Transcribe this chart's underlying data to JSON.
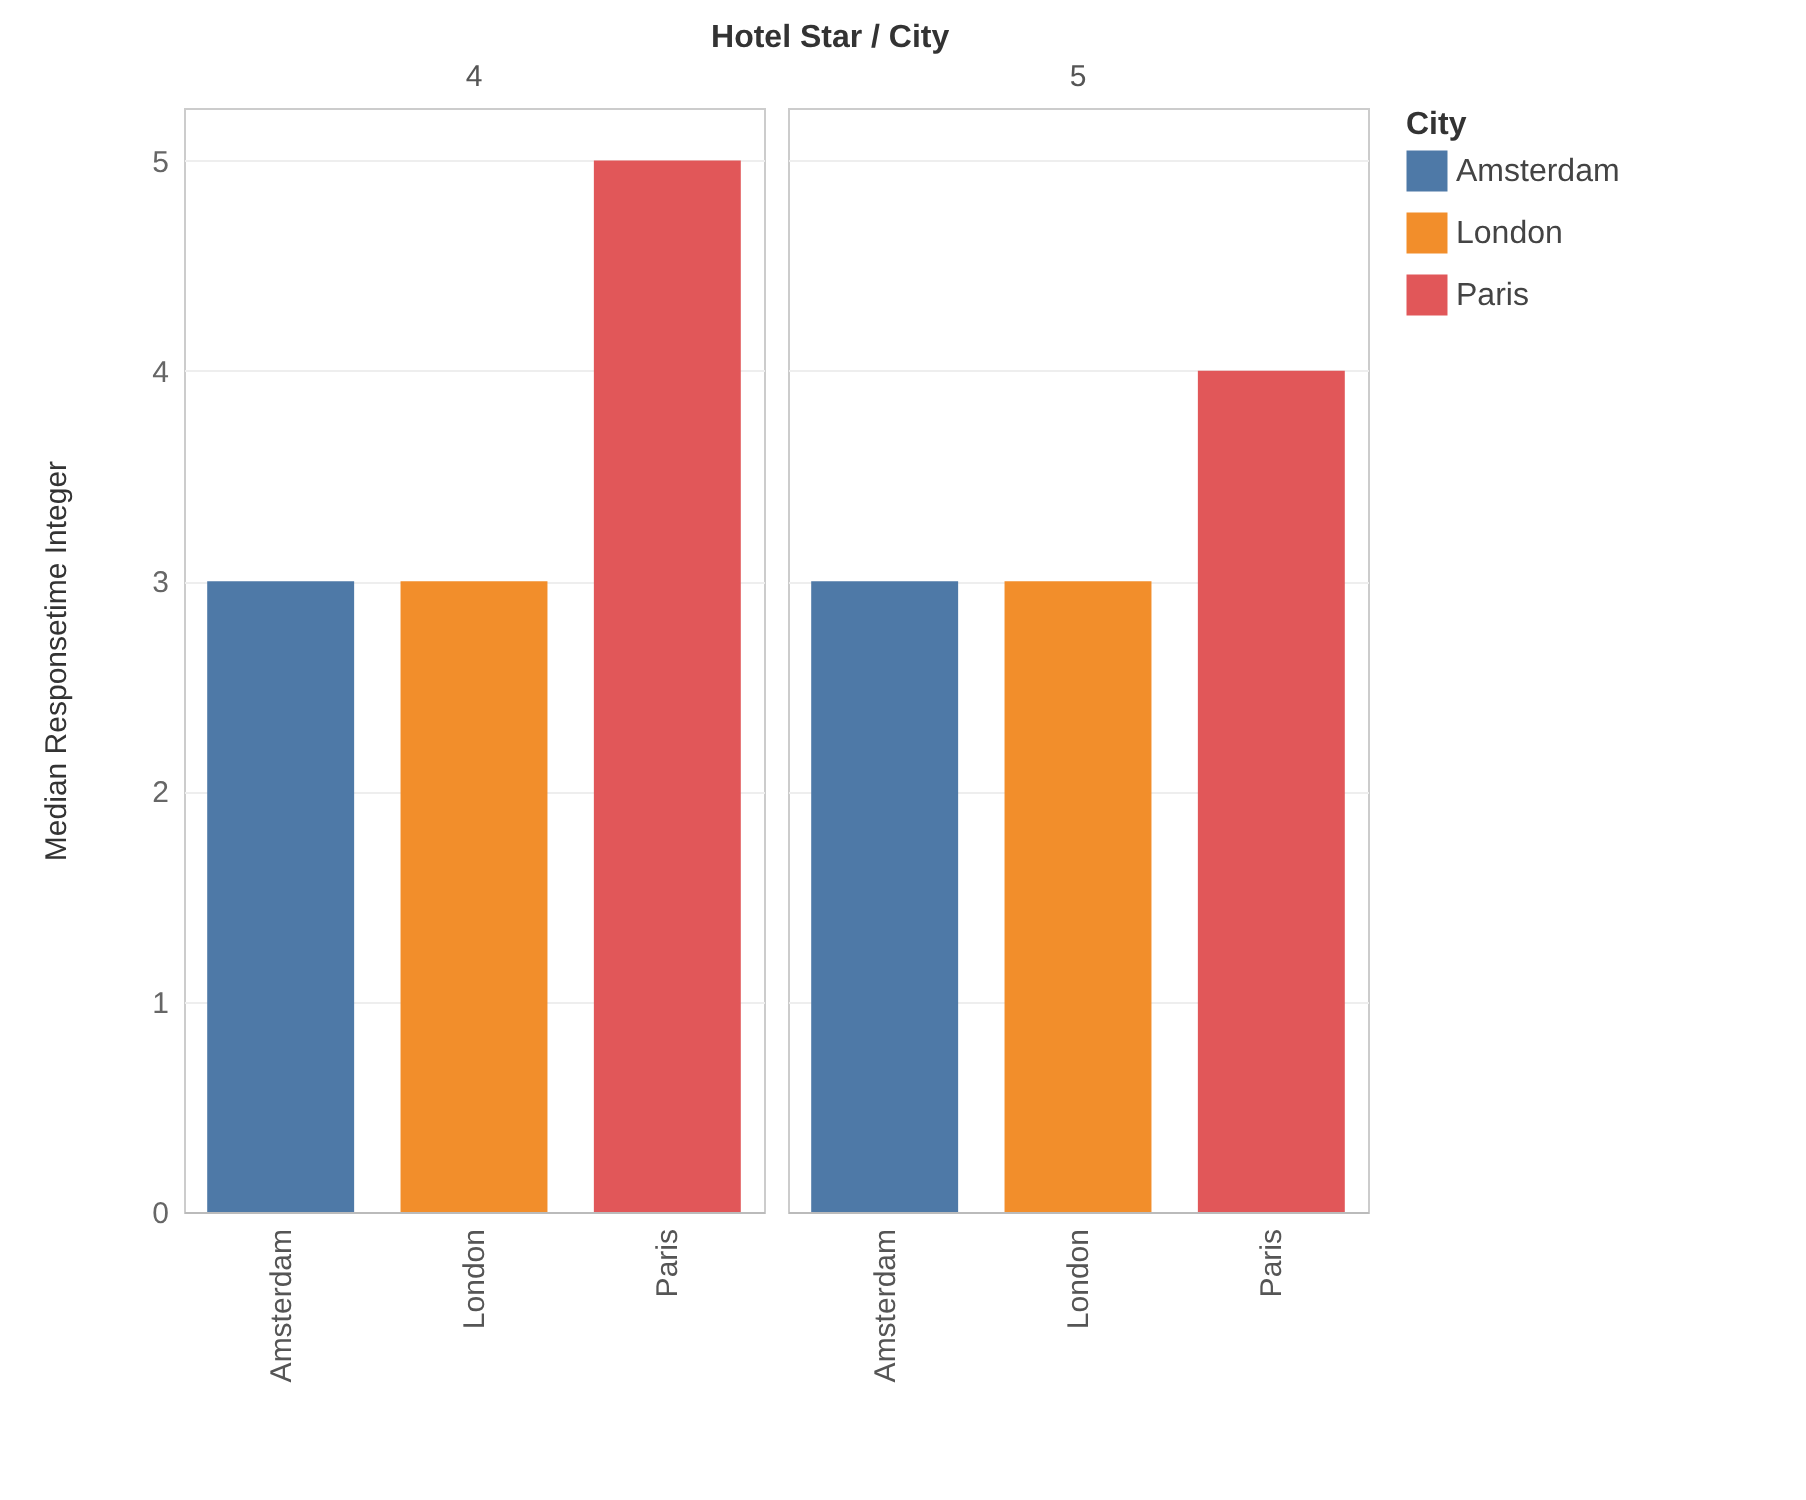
{
  "chart_data": [
    {
      "type": "bar",
      "title": "4",
      "annotations": [
        "Hotel Star / City"
      ],
      "ylabel": "Median Responsetime Integer",
      "categories": [
        "Amsterdam",
        "London",
        "Paris"
      ],
      "series": [
        {
          "name": "Amsterdam",
          "color": "#4e79a7",
          "values": [
            3,
            null,
            null
          ]
        },
        {
          "name": "London",
          "color": "#f28e2b",
          "values": [
            null,
            3,
            null
          ]
        },
        {
          "name": "Paris",
          "color": "#e15759",
          "values": [
            null,
            null,
            5
          ]
        }
      ],
      "ylim": [
        0,
        5.25
      ],
      "yticks": [
        0,
        1,
        2,
        3,
        4,
        5
      ],
      "grid": "y",
      "legend": "top right",
      "legend_title": "City"
    },
    {
      "type": "bar",
      "title": "5",
      "categories": [
        "Amsterdam",
        "London",
        "Paris"
      ],
      "series": [
        {
          "name": "Amsterdam",
          "color": "#4e79a7",
          "values": [
            3,
            null,
            null
          ]
        },
        {
          "name": "London",
          "color": "#f28e2b",
          "values": [
            null,
            3,
            null
          ]
        },
        {
          "name": "Paris",
          "color": "#e15759",
          "values": [
            null,
            null,
            4
          ]
        }
      ],
      "ylim": [
        0,
        5.25
      ],
      "yticks": [
        0,
        1,
        2,
        3,
        4,
        5
      ],
      "grid": "y",
      "tick_labels": "x"
    }
  ]
}
